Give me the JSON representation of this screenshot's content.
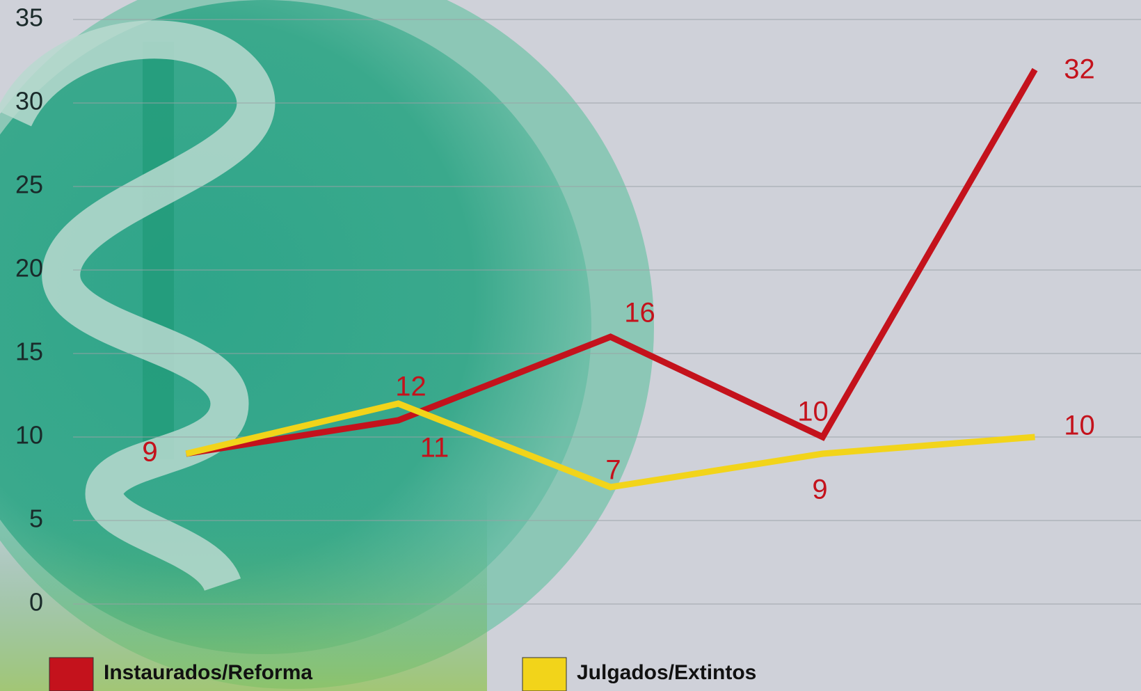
{
  "chart_data": {
    "type": "line",
    "categories": [
      null,
      null,
      null,
      null,
      null
    ],
    "series": [
      {
        "name": "Instaurados/Reforma",
        "color": "#c4121c",
        "values": [
          9,
          11,
          16,
          10,
          32
        ]
      },
      {
        "name": "Julgados/Extintos",
        "color": "#f2d41a",
        "values": [
          9,
          12,
          7,
          9,
          10
        ]
      }
    ],
    "ylim": [
      0,
      35
    ],
    "yticks": [
      0,
      5,
      10,
      15,
      20,
      25,
      30,
      35
    ],
    "grid": true,
    "data_labels": true,
    "legend": "bottom"
  }
}
